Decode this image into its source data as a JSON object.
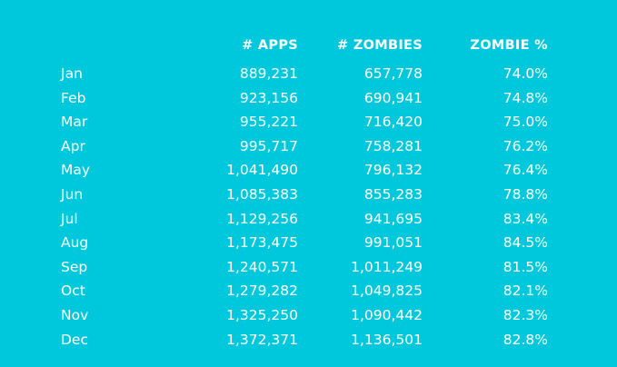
{
  "chart_data": {
    "type": "table",
    "columns": [
      "",
      "# APPS",
      "# ZOMBIES",
      "ZOMBIE %"
    ],
    "rows": [
      {
        "month": "Jan",
        "apps": "889,231",
        "zombies": "657,778",
        "pct": "74.0%"
      },
      {
        "month": "Feb",
        "apps": "923,156",
        "zombies": "690,941",
        "pct": "74.8%"
      },
      {
        "month": "Mar",
        "apps": "955,221",
        "zombies": "716,420",
        "pct": "75.0%"
      },
      {
        "month": "Apr",
        "apps": "995,717",
        "zombies": "758,281",
        "pct": "76.2%"
      },
      {
        "month": "May",
        "apps": "1,041,490",
        "zombies": "796,132",
        "pct": "76.4%"
      },
      {
        "month": "Jun",
        "apps": "1,085,383",
        "zombies": "855,283",
        "pct": "78.8%"
      },
      {
        "month": "Jul",
        "apps": "1,129,256",
        "zombies": "941,695",
        "pct": "83.4%"
      },
      {
        "month": "Aug",
        "apps": "1,173,475",
        "zombies": "991,051",
        "pct": "84.5%"
      },
      {
        "month": "Sep",
        "apps": "1,240,571",
        "zombies": "1,011,249",
        "pct": "81.5%"
      },
      {
        "month": "Oct",
        "apps": "1,279,282",
        "zombies": "1,049,825",
        "pct": "82.1%"
      },
      {
        "month": "Nov",
        "apps": "1,325,250",
        "zombies": "1,090,442",
        "pct": "82.3%"
      },
      {
        "month": "Dec",
        "apps": "1,372,371",
        "zombies": "1,136,501",
        "pct": "82.8%"
      }
    ]
  },
  "colors": {
    "background": "#00c8dc",
    "text": "#ffffff"
  }
}
